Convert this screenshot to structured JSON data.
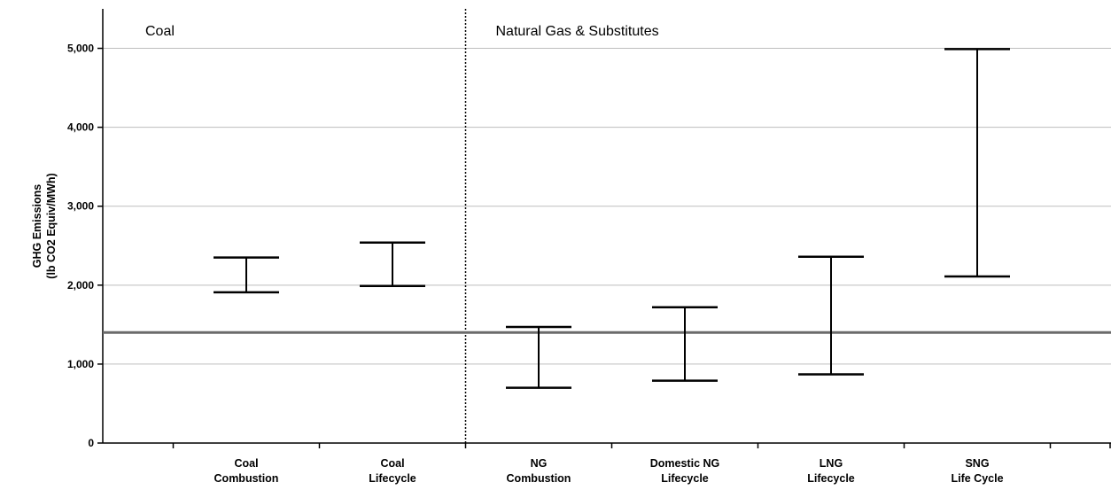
{
  "chart_data": {
    "type": "error-range",
    "title": "",
    "ylabel_lines": [
      "GHG Emissions",
      "(lb CO2 Equiv/MWh)"
    ],
    "xlabel": "",
    "ylim": [
      0,
      5500
    ],
    "yticks": [
      0,
      1000,
      2000,
      3000,
      4000,
      5000
    ],
    "ytick_labels": [
      "0",
      "1,000",
      "2,000",
      "3,000",
      "4,000",
      "5,000"
    ],
    "grid": true,
    "reference_line": {
      "value": 1400,
      "color": "#6b6b6b"
    },
    "groups": [
      {
        "label": "Coal",
        "first_index": 0,
        "last_index": 1
      },
      {
        "label": "Natural Gas & Substitutes",
        "first_index": 2,
        "last_index": 5
      }
    ],
    "categories": [
      {
        "lines": [
          "Coal",
          "Combustion"
        ],
        "low": 1910,
        "high": 2350
      },
      {
        "lines": [
          "Coal",
          "Lifecycle"
        ],
        "low": 1990,
        "high": 2540
      },
      {
        "lines": [
          "NG",
          "Combustion"
        ],
        "low": 700,
        "high": 1470
      },
      {
        "lines": [
          "Domestic NG",
          "Lifecycle"
        ],
        "low": 790,
        "high": 1720
      },
      {
        "lines": [
          "LNG",
          "Lifecycle"
        ],
        "low": 870,
        "high": 2360
      },
      {
        "lines": [
          "SNG",
          "Life Cycle"
        ],
        "low": 2110,
        "high": 4990
      }
    ],
    "colors": {
      "bars": "#000000",
      "grid": "#bdbdbd",
      "axis": "#000000"
    }
  }
}
